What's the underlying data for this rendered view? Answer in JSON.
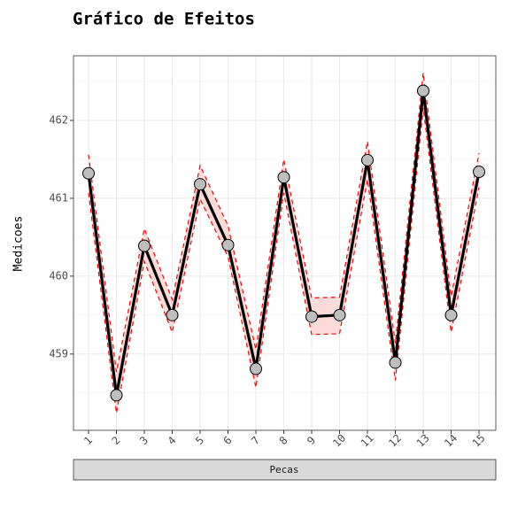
{
  "chart_data": {
    "type": "line",
    "title": "Gráfico de Efeitos",
    "y_label": "Medicoes",
    "x_label": "Pecas",
    "categories": [
      "1",
      "2",
      "3",
      "4",
      "5",
      "6",
      "7",
      "8",
      "9",
      "10",
      "11",
      "12",
      "13",
      "14",
      "15"
    ],
    "values": [
      461.32,
      458.47,
      460.39,
      459.5,
      461.18,
      460.4,
      458.81,
      461.27,
      459.48,
      459.5,
      461.49,
      458.89,
      462.38,
      459.5,
      461.34
    ],
    "upper": [
      461.56,
      458.77,
      460.61,
      459.7,
      461.42,
      460.65,
      459.06,
      461.5,
      459.72,
      459.73,
      461.73,
      459.14,
      462.61,
      459.74,
      461.58
    ],
    "lower": [
      461.07,
      458.24,
      460.19,
      459.28,
      460.99,
      460.25,
      458.57,
      461.07,
      459.25,
      459.26,
      461.24,
      458.66,
      462.16,
      459.28,
      461.14
    ],
    "color": "#000000",
    "point_color": "#bebebe",
    "band_color": "#ff0000",
    "band_fill": "#fbdada",
    "ylim": [
      458.02,
      462.83
    ],
    "yticks": [
      459,
      460,
      461,
      462
    ],
    "grid": true
  }
}
